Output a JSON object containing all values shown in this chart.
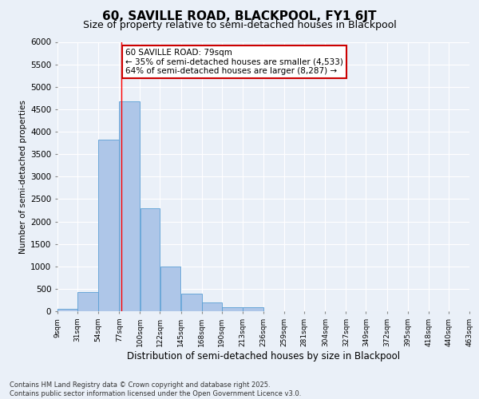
{
  "title": "60, SAVILLE ROAD, BLACKPOOL, FY1 6JT",
  "subtitle": "Size of property relative to semi-detached houses in Blackpool",
  "xlabel": "Distribution of semi-detached houses by size in Blackpool",
  "ylabel": "Number of semi-detached properties",
  "footer_line1": "Contains HM Land Registry data © Crown copyright and database right 2025.",
  "footer_line2": "Contains public sector information licensed under the Open Government Licence v3.0.",
  "annotation_line1": "60 SAVILLE ROAD: 79sqm",
  "annotation_line2": "← 35% of semi-detached houses are smaller (4,533)",
  "annotation_line3": "64% of semi-detached houses are larger (8,287) →",
  "bar_color": "#aec6e8",
  "bar_edge_color": "#5a9fd4",
  "bar_left_edges": [
    9,
    31,
    54,
    77,
    100,
    122,
    145,
    168,
    190,
    213,
    236,
    259,
    281,
    304,
    327,
    349,
    372,
    395,
    418,
    440
  ],
  "bar_widths": [
    22,
    23,
    23,
    23,
    22,
    23,
    23,
    22,
    23,
    23,
    23,
    22,
    23,
    23,
    22,
    23,
    23,
    23,
    22,
    23
  ],
  "bar_heights": [
    50,
    430,
    3820,
    4680,
    2290,
    990,
    400,
    200,
    90,
    90,
    0,
    0,
    0,
    0,
    0,
    0,
    0,
    0,
    0,
    0
  ],
  "x_tick_labels": [
    "9sqm",
    "31sqm",
    "54sqm",
    "77sqm",
    "100sqm",
    "122sqm",
    "145sqm",
    "168sqm",
    "190sqm",
    "213sqm",
    "236sqm",
    "259sqm",
    "281sqm",
    "304sqm",
    "327sqm",
    "349sqm",
    "372sqm",
    "395sqm",
    "418sqm",
    "440sqm",
    "463sqm"
  ],
  "x_tick_positions": [
    9,
    31,
    54,
    77,
    100,
    122,
    145,
    168,
    190,
    213,
    236,
    259,
    281,
    304,
    327,
    349,
    372,
    395,
    418,
    440,
    463
  ],
  "ylim": [
    0,
    6000
  ],
  "xlim": [
    9,
    463
  ],
  "red_line_x": 79,
  "background_color": "#eaf0f8",
  "grid_color": "#ffffff",
  "title_fontsize": 11,
  "subtitle_fontsize": 9,
  "annotation_box_color": "#ffffff",
  "annotation_box_edge_color": "#cc0000",
  "annotation_fontsize": 7.5,
  "ylabel_fontsize": 7.5,
  "xlabel_fontsize": 8.5,
  "ytick_fontsize": 7.5,
  "xtick_fontsize": 6.5,
  "footer_fontsize": 6.0
}
